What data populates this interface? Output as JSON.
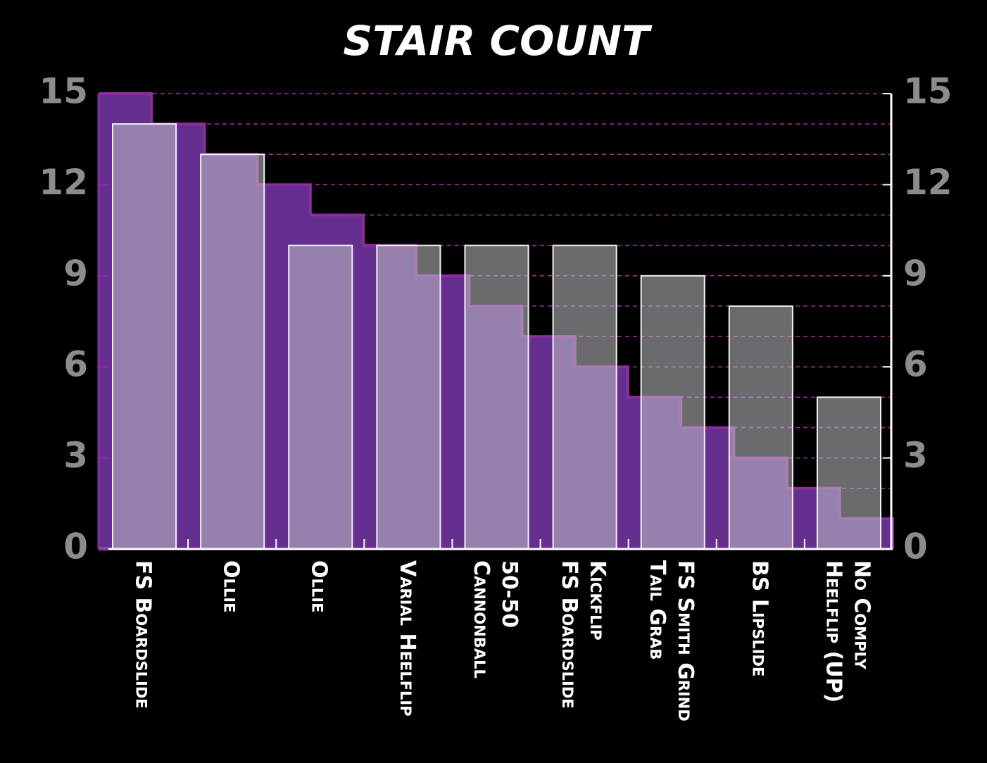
{
  "chart_data": {
    "type": "bar",
    "title": "STAIR COUNT",
    "categories": [
      [
        "FS Boardslide"
      ],
      [
        "Ollie"
      ],
      [
        "Ollie"
      ],
      [
        "Varial Heelflip"
      ],
      [
        "50-50",
        "Cannonball"
      ],
      [
        "Kickflip",
        "FS Boardslide"
      ],
      [
        "FS Smith Grind",
        "Tail Grab"
      ],
      [
        "BS Lipslide"
      ],
      [
        "No Comply",
        "Heelflip (UP)"
      ]
    ],
    "values": [
      14,
      13,
      10,
      10,
      10,
      10,
      9,
      8,
      5
    ],
    "color": "rgba(195,195,200,0.55)",
    "staircase": {
      "values": [
        15,
        14,
        13,
        12,
        11,
        10,
        9,
        8,
        7,
        6,
        5,
        4,
        3,
        2,
        1
      ],
      "color": "#652f8f"
    },
    "ylim": [
      0,
      15
    ],
    "yticks": [
      0,
      3,
      6,
      9,
      12,
      15
    ],
    "y2ticks": [
      0,
      3,
      6,
      9,
      12,
      15
    ],
    "grid_lines": [
      1,
      2,
      3,
      4,
      5,
      6,
      7,
      8,
      9,
      10,
      11,
      12,
      13,
      14,
      15
    ],
    "grid": true
  }
}
